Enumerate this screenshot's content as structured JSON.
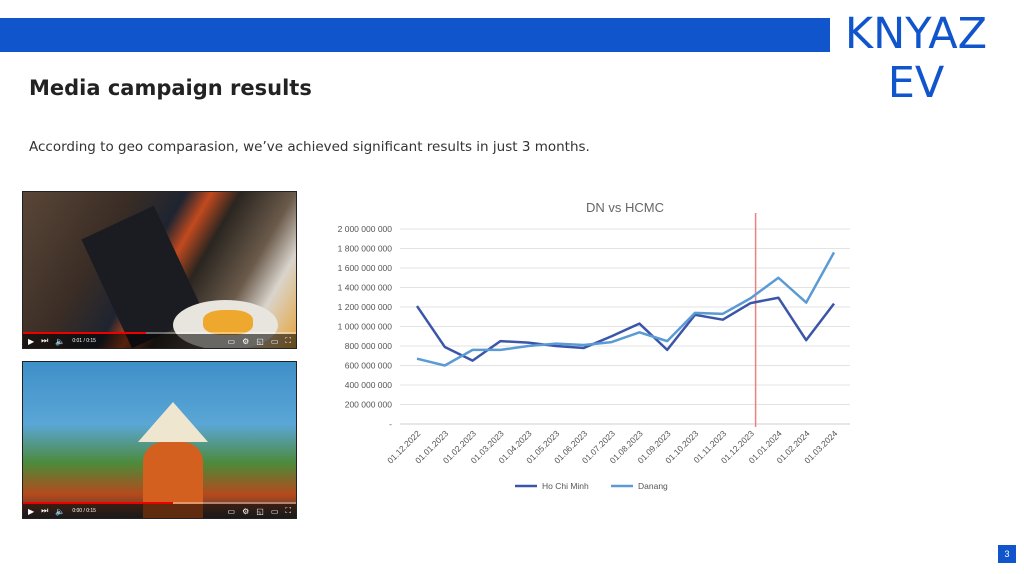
{
  "brand": {
    "logo_line1": "KNYAZ",
    "logo_line2": "EV",
    "color": "#1155cc"
  },
  "slide": {
    "title": "Media campaign results",
    "subtitle": "According to geo comparasion, we’ve achieved significant results in just 3 months.",
    "page_number": "3"
  },
  "videos": [
    {
      "time": "0:01 / 0:15",
      "progress": 0.45
    },
    {
      "time": "0:00 / 0:15",
      "progress": 0.55
    }
  ],
  "chart_data": {
    "type": "line",
    "title": "DN vs HCMC",
    "categories": [
      "01.12.2022",
      "01.01.2023",
      "01.02.2023",
      "01.03.2023",
      "01.04.2023",
      "01.05.2023",
      "01.06.2023",
      "01.07.2023",
      "01.08.2023",
      "01.09.2023",
      "01.10.2023",
      "01.11.2023",
      "01.12.2023",
      "01.01.2024",
      "01.02.2024",
      "01.03.2024"
    ],
    "series": [
      {
        "name": "Ho Chi Minh",
        "color": "#3b56a8",
        "values": [
          1210000000,
          790000000,
          650000000,
          850000000,
          835000000,
          800000000,
          780000000,
          900000000,
          1030000000,
          760000000,
          1120000000,
          1070000000,
          1240000000,
          1295000000,
          860000000,
          1235000000
        ]
      },
      {
        "name": "Danang",
        "color": "#5b9bd5",
        "values": [
          670000000,
          600000000,
          760000000,
          760000000,
          800000000,
          825000000,
          810000000,
          840000000,
          940000000,
          850000000,
          1140000000,
          1130000000,
          1290000000,
          1500000000,
          1245000000,
          1760000000
        ]
      }
    ],
    "ylim": [
      0,
      2000000000
    ],
    "yticks": [
      "-",
      "200 000 000",
      "400 000 000",
      "600 000 000",
      "800 000 000",
      "1 000 000 000",
      "1 200 000 000",
      "1 400 000 000",
      "1 600 000 000",
      "1 800 000 000",
      "2 000 000 000"
    ],
    "grid": true,
    "legend": "bottom",
    "marker_line": {
      "at": "01.12.2023",
      "color": "#f08080"
    }
  }
}
